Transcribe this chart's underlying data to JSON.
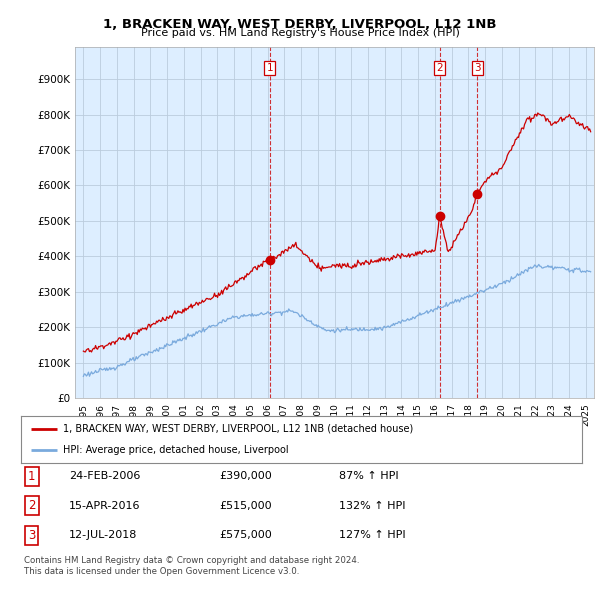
{
  "title": "1, BRACKEN WAY, WEST DERBY, LIVERPOOL, L12 1NB",
  "subtitle": "Price paid vs. HM Land Registry's House Price Index (HPI)",
  "legend_line1": "1, BRACKEN WAY, WEST DERBY, LIVERPOOL, L12 1NB (detached house)",
  "legend_line2": "HPI: Average price, detached house, Liverpool",
  "transactions": [
    {
      "num": 1,
      "date": "24-FEB-2006",
      "price": 390000,
      "pct": "87%",
      "dir": "↑",
      "year_x": 2006.14
    },
    {
      "num": 2,
      "date": "15-APR-2016",
      "price": 515000,
      "pct": "132%",
      "dir": "↑",
      "year_x": 2016.29
    },
    {
      "num": 3,
      "date": "12-JUL-2018",
      "price": 575000,
      "pct": "127%",
      "dir": "↑",
      "year_x": 2018.54
    }
  ],
  "footnote1": "Contains HM Land Registry data © Crown copyright and database right 2024.",
  "footnote2": "This data is licensed under the Open Government Licence v3.0.",
  "red_color": "#cc0000",
  "blue_color": "#7aaadd",
  "chart_bg": "#ddeeff",
  "grid_color": "#bbccdd",
  "background_color": "#ffffff",
  "ylim": [
    0,
    900000
  ],
  "xlim_start": 1994.5,
  "xlim_end": 2025.5
}
